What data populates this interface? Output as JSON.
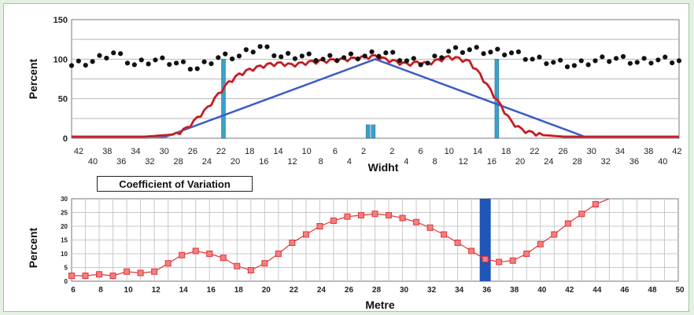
{
  "chart_data": [
    {
      "type": "line",
      "ylabel": "Percent",
      "xlabel": "Widht",
      "ylim": [
        0,
        150
      ],
      "yticks": [
        0,
        50,
        100,
        150
      ],
      "x_ticks_top": [
        "42",
        "38",
        "34",
        "30",
        "26",
        "22",
        "18",
        "14",
        "10",
        "6",
        "2",
        "2",
        "6",
        "10",
        "14",
        "18",
        "22",
        "26",
        "30",
        "34",
        "38",
        "42"
      ],
      "x_ticks_bottom": [
        "40",
        "36",
        "32",
        "28",
        "24",
        "20",
        "16",
        "12",
        "8",
        "4",
        "4",
        "8",
        "12",
        "16",
        "20",
        "24",
        "28",
        "32",
        "36",
        "40"
      ],
      "grid": true,
      "series": [
        {
          "role": "triangle-trend",
          "color": "#3a5cc4",
          "x": [
            0,
            9,
            29,
            49,
            58
          ],
          "values": [
            2,
            2,
            100,
            2,
            2
          ]
        },
        {
          "role": "red-profile",
          "color": "#e4343a",
          "x": [
            0,
            3,
            6,
            7,
            8,
            9,
            10,
            11,
            12,
            13,
            14,
            15,
            16,
            17,
            18,
            19,
            20,
            21,
            22,
            23,
            24,
            25,
            26,
            27,
            28,
            29,
            30,
            31,
            32,
            33,
            34,
            35,
            36,
            37,
            38,
            39,
            40,
            41,
            42,
            43,
            44,
            45,
            46,
            47,
            48,
            50,
            55,
            58
          ],
          "values": [
            2,
            2,
            2,
            2,
            3,
            4,
            5,
            12,
            25,
            38,
            55,
            70,
            80,
            86,
            90,
            93,
            94,
            92,
            94,
            96,
            97,
            98,
            99,
            100,
            102,
            103,
            99,
            96,
            93,
            95,
            94,
            98,
            102,
            100,
            96,
            80,
            60,
            40,
            20,
            10,
            6,
            4,
            3,
            2,
            2,
            2,
            2,
            2
          ]
        },
        {
          "role": "coefficient-dots",
          "color": "#111111",
          "x": [
            0,
            2,
            4,
            6,
            8,
            10,
            12,
            14,
            16,
            18,
            20,
            22,
            24,
            26,
            28,
            30,
            32,
            34,
            36,
            38,
            40,
            42,
            44,
            46,
            48,
            50,
            52,
            54,
            56,
            58
          ],
          "values": [
            92,
            97,
            108,
            93,
            99,
            95,
            88,
            102,
            104,
            116,
            103,
            104,
            100,
            102,
            104,
            108,
            98,
            95,
            110,
            112,
            109,
            108,
            100,
            96,
            92,
            98,
            101,
            96,
            99,
            98
          ]
        }
      ],
      "bars": [
        {
          "x": 14.5,
          "value": 100,
          "color": "#3ba0cc"
        },
        {
          "x": 28.3,
          "value": 17,
          "color": "#3ba0cc"
        },
        {
          "x": 28.8,
          "value": 17,
          "color": "#3ba0cc"
        },
        {
          "x": 40.6,
          "value": 100,
          "color": "#3ba0cc"
        }
      ]
    },
    {
      "type": "line",
      "title": "Coefficient of Variation",
      "xlabel": "Metre",
      "ylabel": "Percent",
      "xlim": [
        6,
        50
      ],
      "ylim": [
        0,
        30
      ],
      "yticks": [
        0,
        5,
        10,
        15,
        20,
        25,
        30
      ],
      "xticks": [
        6,
        8,
        10,
        12,
        14,
        16,
        18,
        20,
        22,
        24,
        26,
        28,
        30,
        32,
        34,
        36,
        38,
        40,
        42,
        44,
        46,
        48,
        50
      ],
      "grid": true,
      "series": [
        {
          "color": "#e4343a",
          "x": [
            6,
            7,
            8,
            9,
            10,
            11,
            12,
            13,
            14,
            15,
            16,
            17,
            18,
            19,
            20,
            21,
            22,
            23,
            24,
            25,
            26,
            27,
            28,
            29,
            30,
            31,
            32,
            33,
            34,
            35,
            36,
            37,
            38,
            39,
            40,
            41,
            42,
            43,
            44,
            45
          ],
          "values": [
            2,
            2,
            2.5,
            2,
            3.5,
            3,
            3.5,
            6.5,
            9.5,
            11,
            10,
            8.5,
            5.5,
            4,
            6.5,
            10,
            14,
            17,
            20,
            22,
            23.5,
            24,
            24.5,
            24,
            23,
            21.5,
            19.5,
            17,
            14,
            11,
            8,
            7,
            7.5,
            10,
            13.5,
            17,
            21,
            24.5,
            28,
            30
          ]
        }
      ],
      "bars": [
        {
          "x": 36,
          "value": 30,
          "color": "#2055b8"
        }
      ]
    }
  ]
}
